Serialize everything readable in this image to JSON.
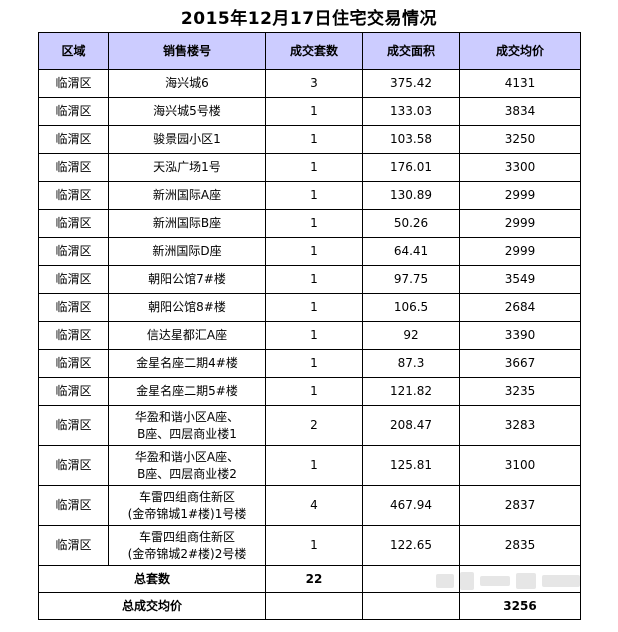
{
  "title": "2015年12月17日住宅交易情况",
  "table": {
    "headers": [
      "区域",
      "销售楼号",
      "成交套数",
      "成交面积",
      "成交均价"
    ],
    "rows": [
      {
        "region": "临渭区",
        "building": [
          "海兴城6"
        ],
        "count": "3",
        "area": "375.42",
        "price": "4131"
      },
      {
        "region": "临渭区",
        "building": [
          "海兴城5号楼"
        ],
        "count": "1",
        "area": "133.03",
        "price": "3834"
      },
      {
        "region": "临渭区",
        "building": [
          "骏景园小区1"
        ],
        "count": "1",
        "area": "103.58",
        "price": "3250"
      },
      {
        "region": "临渭区",
        "building": [
          "天泓广场1号"
        ],
        "count": "1",
        "area": "176.01",
        "price": "3300"
      },
      {
        "region": "临渭区",
        "building": [
          "新洲国际A座"
        ],
        "count": "1",
        "area": "130.89",
        "price": "2999"
      },
      {
        "region": "临渭区",
        "building": [
          "新洲国际B座"
        ],
        "count": "1",
        "area": "50.26",
        "price": "2999"
      },
      {
        "region": "临渭区",
        "building": [
          "新洲国际D座"
        ],
        "count": "1",
        "area": "64.41",
        "price": "2999"
      },
      {
        "region": "临渭区",
        "building": [
          "朝阳公馆7#楼"
        ],
        "count": "1",
        "area": "97.75",
        "price": "3549"
      },
      {
        "region": "临渭区",
        "building": [
          "朝阳公馆8#楼"
        ],
        "count": "1",
        "area": "106.5",
        "price": "2684"
      },
      {
        "region": "临渭区",
        "building": [
          "信达星都汇A座"
        ],
        "count": "1",
        "area": "92",
        "price": "3390"
      },
      {
        "region": "临渭区",
        "building": [
          "金星名座二期4#楼"
        ],
        "count": "1",
        "area": "87.3",
        "price": "3667"
      },
      {
        "region": "临渭区",
        "building": [
          "金星名座二期5#楼"
        ],
        "count": "1",
        "area": "121.82",
        "price": "3235"
      },
      {
        "region": "临渭区",
        "building": [
          "华盈和谐小区A座、",
          "B座、四层商业楼1"
        ],
        "count": "2",
        "area": "208.47",
        "price": "3283"
      },
      {
        "region": "临渭区",
        "building": [
          "华盈和谐小区A座、",
          "B座、四层商业楼2"
        ],
        "count": "1",
        "area": "125.81",
        "price": "3100"
      },
      {
        "region": "临渭区",
        "building": [
          "车雷四组商住新区",
          "(金帝锦城1#楼)1号楼"
        ],
        "count": "4",
        "area": "467.94",
        "price": "2837"
      },
      {
        "region": "临渭区",
        "building": [
          "车雷四组商住新区",
          "(金帝锦城2#楼)2号楼"
        ],
        "count": "1",
        "area": "122.65",
        "price": "2835"
      }
    ],
    "total_units_label": "总套数",
    "total_units_value": "22",
    "avg_price_label": "总成交均价",
    "avg_price_value": "3256"
  }
}
